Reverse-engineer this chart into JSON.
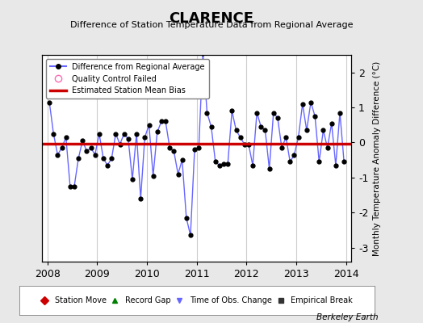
{
  "title": "CLARENCE",
  "subtitle": "Difference of Station Temperature Data from Regional Average",
  "ylabel_right": "Monthly Temperature Anomaly Difference (°C)",
  "xlim": [
    2007.9,
    2014.1
  ],
  "ylim": [
    -3.4,
    2.5
  ],
  "yticks": [
    -3,
    -2,
    -1,
    0,
    1,
    2
  ],
  "xticks": [
    2008,
    2009,
    2010,
    2011,
    2012,
    2013,
    2014
  ],
  "bias_value": -0.03,
  "background_color": "#e8e8e8",
  "plot_bg_color": "#ffffff",
  "grid_color": "#cccccc",
  "line_color": "#6666ff",
  "marker_color": "#000000",
  "bias_color": "#cc0000",
  "footer": "Berkeley Earth",
  "data_x": [
    2008.042,
    2008.125,
    2008.208,
    2008.292,
    2008.375,
    2008.458,
    2008.542,
    2008.625,
    2008.708,
    2008.792,
    2008.875,
    2008.958,
    2009.042,
    2009.125,
    2009.208,
    2009.292,
    2009.375,
    2009.458,
    2009.542,
    2009.625,
    2009.708,
    2009.792,
    2009.875,
    2009.958,
    2010.042,
    2010.125,
    2010.208,
    2010.292,
    2010.375,
    2010.458,
    2010.542,
    2010.625,
    2010.708,
    2010.792,
    2010.875,
    2010.958,
    2011.042,
    2011.125,
    2011.208,
    2011.292,
    2011.375,
    2011.458,
    2011.542,
    2011.625,
    2011.708,
    2011.792,
    2011.875,
    2011.958,
    2012.042,
    2012.125,
    2012.208,
    2012.292,
    2012.375,
    2012.458,
    2012.542,
    2012.625,
    2012.708,
    2012.792,
    2012.875,
    2012.958,
    2013.042,
    2013.125,
    2013.208,
    2013.292,
    2013.375,
    2013.458,
    2013.542,
    2013.625,
    2013.708,
    2013.792,
    2013.875,
    2013.958
  ],
  "data_y": [
    1.15,
    0.25,
    -0.35,
    -0.15,
    0.15,
    -1.25,
    -1.25,
    -0.45,
    0.05,
    -0.25,
    -0.15,
    -0.35,
    0.25,
    -0.45,
    -0.65,
    -0.45,
    0.25,
    -0.05,
    0.25,
    0.1,
    -1.05,
    0.25,
    -1.6,
    0.15,
    0.5,
    -0.95,
    0.3,
    0.6,
    0.6,
    -0.15,
    -0.25,
    -0.9,
    -0.5,
    -2.15,
    -2.65,
    -0.2,
    -0.15,
    2.55,
    0.85,
    0.45,
    -0.55,
    -0.65,
    -0.6,
    -0.6,
    0.9,
    0.35,
    0.15,
    -0.05,
    -0.05,
    -0.65,
    0.85,
    0.45,
    0.35,
    -0.75,
    0.85,
    0.7,
    -0.15,
    0.15,
    -0.55,
    -0.35,
    0.15,
    1.1,
    0.35,
    1.15,
    0.75,
    -0.55,
    0.35,
    -0.15,
    0.55,
    -0.65,
    0.85,
    -0.55
  ]
}
